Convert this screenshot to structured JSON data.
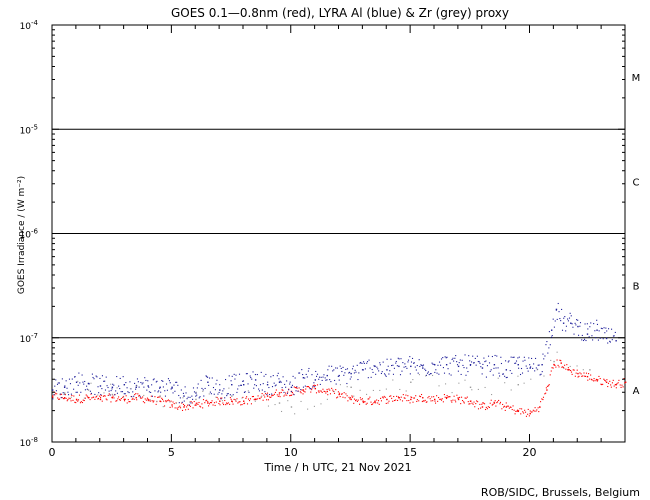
{
  "chart_data": {
    "type": "scatter",
    "title": "GOES 0.1—0.8nm (red), LYRA Al (blue) & Zr (grey) proxy",
    "xlabel": "Time / h UTC, 21 Nov 2021",
    "ylabel": "GOES Irradiance / (W m⁻²)",
    "y_scale": "log",
    "xlim": [
      0,
      24
    ],
    "ylim_exponents": [
      -8,
      -4
    ],
    "x_ticks": [
      0,
      5,
      10,
      15,
      20
    ],
    "x_tick_labels": [
      "0",
      "5",
      "10",
      "15",
      "20"
    ],
    "y_tick_labels": [
      {
        "base": "10",
        "exp": "-8"
      },
      {
        "base": "10",
        "exp": "-7"
      },
      {
        "base": "10",
        "exp": "-6"
      },
      {
        "base": "10",
        "exp": "-5"
      },
      {
        "base": "10",
        "exp": "-4"
      }
    ],
    "flare_class_lines": [
      1e-07,
      1e-06,
      1e-05
    ],
    "flare_classes": [
      {
        "label": "A",
        "log_center": -7.5
      },
      {
        "label": "B",
        "log_center": -6.5
      },
      {
        "label": "C",
        "log_center": -5.5
      },
      {
        "label": "M",
        "log_center": -4.5
      }
    ],
    "series": [
      {
        "name": "GOES 0.1-0.8nm",
        "color": "#ff0000",
        "x": [
          0,
          0.5,
          1,
          1.5,
          2,
          2.5,
          3,
          3.5,
          4,
          4.5,
          5,
          5.5,
          6,
          6.5,
          7,
          7.5,
          8,
          8.5,
          9,
          9.5,
          10,
          10.5,
          11,
          11.5,
          12,
          12.5,
          13,
          13.5,
          14,
          14.5,
          15,
          15.5,
          16,
          16.5,
          17,
          17.5,
          18,
          18.5,
          19,
          19.5,
          20,
          20.4,
          20.7,
          21,
          21.3,
          21.6,
          22,
          22.4,
          22.8,
          23.2,
          23.6,
          24
        ],
        "y": [
          2.8e-08,
          2.7e-08,
          2.6e-08,
          2.7e-08,
          2.6e-08,
          2.7e-08,
          2.6e-08,
          2.7e-08,
          2.6e-08,
          2.5e-08,
          2.3e-08,
          2.2e-08,
          2.3e-08,
          2.4e-08,
          2.5e-08,
          2.5e-08,
          2.5e-08,
          2.6e-08,
          2.8e-08,
          3e-08,
          3.1e-08,
          3.2e-08,
          3.3e-08,
          3.1e-08,
          2.9e-08,
          2.6e-08,
          2.5e-08,
          2.5e-08,
          2.6e-08,
          2.7e-08,
          2.6e-08,
          2.7e-08,
          2.6e-08,
          2.7e-08,
          2.6e-08,
          2.5e-08,
          2.2e-08,
          2.4e-08,
          2.2e-08,
          2e-08,
          1.9e-08,
          2.2e-08,
          3.2e-08,
          5.6e-08,
          5.8e-08,
          5e-08,
          4.6e-08,
          4.3e-08,
          4e-08,
          3.8e-08,
          3.6e-08,
          3.8e-08
        ]
      },
      {
        "name": "LYRA Al proxy",
        "color": "#1f1f9a",
        "x": [
          0,
          0.5,
          1,
          1.5,
          2,
          2.5,
          3,
          3.5,
          4,
          4.5,
          5,
          5.5,
          6,
          6.5,
          7,
          7.5,
          8,
          8.5,
          9,
          9.5,
          10,
          10.5,
          11,
          11.5,
          12,
          12.5,
          13,
          13.5,
          14,
          14.5,
          15,
          15.5,
          16,
          16.5,
          17,
          17.5,
          18,
          18.5,
          19,
          19.5,
          20,
          20.5,
          20.9,
          21.1,
          21.4,
          21.7,
          22,
          22.4,
          22.8,
          23.2,
          23.6
        ],
        "y": [
          3.2e-08,
          3.4e-08,
          3.8e-08,
          3.7e-08,
          3.5e-08,
          3.4e-08,
          3.6e-08,
          3.4e-08,
          3.5e-08,
          3.4e-08,
          3.4e-08,
          2.8e-08,
          3e-08,
          3.8e-08,
          3.2e-08,
          3.6e-08,
          3.6e-08,
          4e-08,
          3.6e-08,
          3.8e-08,
          3.4e-08,
          4.2e-08,
          4e-08,
          4.4e-08,
          4.4e-08,
          4.6e-08,
          5e-08,
          5.4e-08,
          5e-08,
          5.4e-08,
          5.4e-08,
          5.2e-08,
          5.6e-08,
          5.6e-08,
          5.4e-08,
          5.6e-08,
          5.2e-08,
          5.6e-08,
          5e-08,
          5.6e-08,
          5.2e-08,
          5.6e-08,
          1.2e-07,
          1.9e-07,
          1.4e-07,
          1.4e-07,
          1.3e-07,
          1.1e-07,
          1.2e-07,
          1e-07,
          9.5e-08
        ]
      },
      {
        "name": "LYRA Zr proxy",
        "color": "#9a9a9a",
        "x": [
          0.5,
          1.5,
          2.5,
          4.5,
          6.0,
          7.5,
          9.5,
          10.0,
          12.5,
          15.0,
          17.5,
          19.5,
          21.0,
          22.5
        ],
        "y": [
          3e-08,
          3.2e-08,
          2.9e-08,
          2.8e-08,
          2.6e-08,
          2.8e-08,
          2.4e-08,
          2.2e-08,
          3.4e-08,
          3.8e-08,
          3.4e-08,
          3.6e-08,
          6e-08,
          5e-08
        ]
      }
    ]
  },
  "credit": "ROB/SIDC, Brussels, Belgium"
}
